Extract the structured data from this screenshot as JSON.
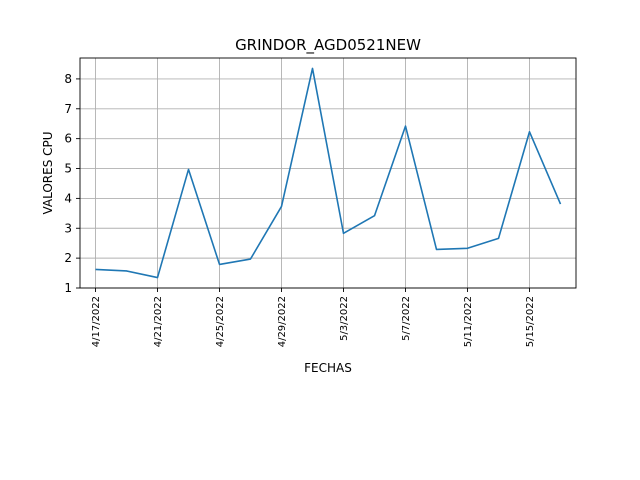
{
  "chart_data": {
    "type": "line",
    "title": "GRINDOR_AGD0521NEW",
    "xlabel": "FECHAS",
    "ylabel": "VALORES CPU",
    "x": [
      "2022-04-17",
      "2022-04-19",
      "2022-04-21",
      "2022-04-23",
      "2022-04-25",
      "2022-04-27",
      "2022-04-29",
      "2022-05-01",
      "2022-05-03",
      "2022-05-05",
      "2022-05-07",
      "2022-05-09",
      "2022-05-11",
      "2022-05-13",
      "2022-05-15",
      "2022-05-17"
    ],
    "series": [
      {
        "values": [
          1.62,
          1.57,
          1.35,
          4.97,
          1.79,
          1.97,
          3.73,
          8.35,
          2.83,
          3.42,
          6.42,
          2.29,
          2.33,
          2.66,
          6.23,
          3.81
        ]
      }
    ],
    "xticks": [
      "2022-04-17",
      "2022-04-21",
      "2022-04-25",
      "2022-04-29",
      "2022-05-03",
      "2022-05-07",
      "2022-05-11",
      "2022-05-15"
    ],
    "xtick_labels": [
      "4/17/2022",
      "4/21/2022",
      "4/25/2022",
      "4/29/2022",
      "5/3/2022",
      "5/7/2022",
      "5/11/2022",
      "5/15/2022"
    ],
    "yticks": [
      1,
      2,
      3,
      4,
      5,
      6,
      7,
      8
    ],
    "ytick_labels": [
      "1",
      "2",
      "3",
      "4",
      "5",
      "6",
      "7",
      "8"
    ],
    "xlim": [
      "2022-04-16",
      "2022-05-18"
    ],
    "ylim": [
      1,
      8.7
    ],
    "grid": true,
    "color": "#1f77b4"
  }
}
